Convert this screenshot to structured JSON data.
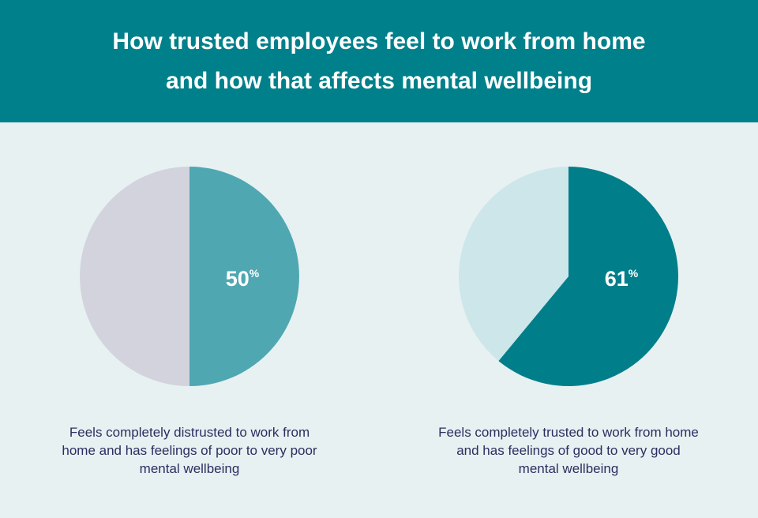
{
  "title": "How trusted employees feel to work from home and how that affects mental wellbeing",
  "colors": {
    "header": "#00808b",
    "background": "#e7f1f2",
    "text": "#2b2f5f"
  },
  "chart_data": [
    {
      "type": "pie",
      "title": "",
      "slices": [
        {
          "label": "Feels completely distrusted to work from home and has feelings of poor to very poor mental wellbeing",
          "value": 50,
          "color": "#4fa7b2",
          "display": "50",
          "unit": "%"
        },
        {
          "label": "Other",
          "value": 50,
          "color": "#d3d3de"
        }
      ],
      "caption": "Feels completely distrusted to work from home and has feelings of poor to very poor mental wellbeing"
    },
    {
      "type": "pie",
      "title": "",
      "slices": [
        {
          "label": "Feels completely trusted to work from home and has feelings of good to very good mental wellbeing",
          "value": 61,
          "color": "#007e8a",
          "display": "61",
          "unit": "%"
        },
        {
          "label": "Other",
          "value": 39,
          "color": "#cde6ea"
        }
      ],
      "caption": "Feels completely trusted to work from home and has feelings of good to very good mental wellbeing"
    }
  ]
}
